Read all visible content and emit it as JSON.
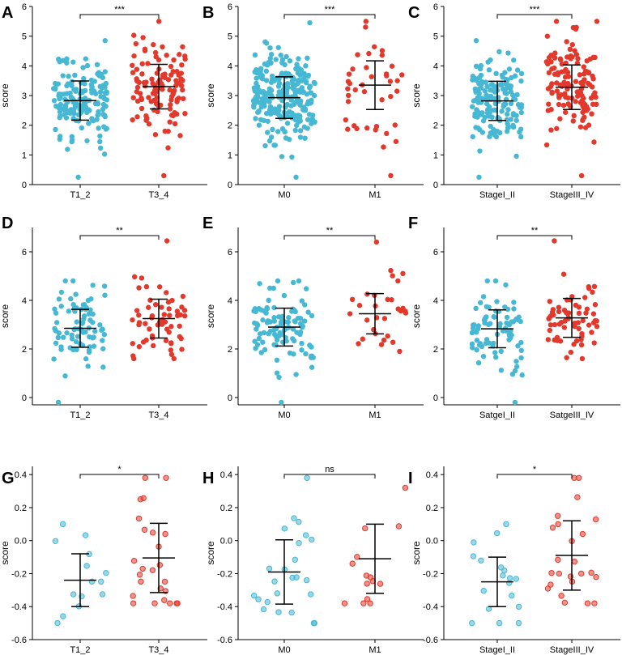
{
  "figure": {
    "colors": {
      "group1": "#47b8d4",
      "group2": "#e2392c",
      "axis": "#000000"
    }
  },
  "chart_data": [
    {
      "id": "A",
      "type": "scatter",
      "ylabel": "score",
      "ylim": [
        0,
        6
      ],
      "yticks": [
        0,
        1,
        2,
        3,
        4,
        5,
        6
      ],
      "yticklabels": [
        "0",
        "1",
        "2",
        "3",
        "4",
        "5",
        "6"
      ],
      "categories": [
        "T1_2",
        "T3_4"
      ],
      "significance": "***",
      "groups": [
        {
          "name": "T1_2",
          "n": 160,
          "mean": 2.83,
          "sd": 0.66,
          "min": 0.25,
          "max": 4.85,
          "style": "solid"
        },
        {
          "name": "T3_4",
          "n": 120,
          "mean": 3.3,
          "sd": 0.75,
          "min": 0.3,
          "max": 5.5,
          "style": "solid"
        }
      ]
    },
    {
      "id": "B",
      "type": "scatter",
      "ylabel": "score",
      "ylim": [
        0,
        6
      ],
      "yticks": [
        0,
        1,
        2,
        3,
        4,
        5,
        6
      ],
      "yticklabels": [
        "0",
        "1",
        "2",
        "3",
        "4",
        "5",
        "6"
      ],
      "categories": [
        "M0",
        "M1"
      ],
      "significance": "***",
      "groups": [
        {
          "name": "M0",
          "n": 260,
          "mean": 2.93,
          "sd": 0.7,
          "min": 0.25,
          "max": 5.45,
          "style": "solid"
        },
        {
          "name": "M1",
          "n": 40,
          "mean": 3.35,
          "sd": 0.82,
          "min": 0.3,
          "max": 5.5,
          "style": "solid"
        }
      ]
    },
    {
      "id": "C",
      "type": "scatter",
      "ylabel": "score",
      "ylim": [
        0,
        6
      ],
      "yticks": [
        0,
        1,
        2,
        3,
        4,
        5,
        6
      ],
      "yticklabels": [
        "0",
        "1",
        "2",
        "3",
        "4",
        "5",
        "6"
      ],
      "categories": [
        "StageI_II",
        "StageIII_IV"
      ],
      "significance": "***",
      "groups": [
        {
          "name": "StageI_II",
          "n": 160,
          "mean": 2.82,
          "sd": 0.66,
          "min": 0.25,
          "max": 4.85,
          "style": "solid"
        },
        {
          "name": "StageIII_IV",
          "n": 130,
          "mean": 3.28,
          "sd": 0.75,
          "min": 0.3,
          "max": 5.5,
          "style": "solid"
        }
      ]
    },
    {
      "id": "D",
      "type": "scatter",
      "ylabel": "score",
      "ylim": [
        -0.3,
        7
      ],
      "yticks": [
        0,
        2,
        4,
        6
      ],
      "yticklabels": [
        "0",
        "2",
        "4",
        "6"
      ],
      "categories": [
        "T1_2",
        "T3_4"
      ],
      "significance": "**",
      "groups": [
        {
          "name": "T1_2",
          "n": 80,
          "mean": 2.85,
          "sd": 0.78,
          "min": -0.2,
          "max": 4.8,
          "style": "solid"
        },
        {
          "name": "T3_4",
          "n": 60,
          "mean": 3.25,
          "sd": 0.8,
          "min": 1.6,
          "max": 6.45,
          "style": "solid"
        }
      ]
    },
    {
      "id": "E",
      "type": "scatter",
      "ylabel": "score",
      "ylim": [
        -0.3,
        7
      ],
      "yticks": [
        0,
        2,
        4,
        6
      ],
      "yticklabels": [
        "0",
        "2",
        "4",
        "6"
      ],
      "categories": [
        "M0",
        "M1"
      ],
      "significance": "**",
      "groups": [
        {
          "name": "M0",
          "n": 110,
          "mean": 2.9,
          "sd": 0.78,
          "min": -0.2,
          "max": 4.8,
          "style": "solid"
        },
        {
          "name": "M1",
          "n": 30,
          "mean": 3.45,
          "sd": 0.83,
          "min": 1.9,
          "max": 6.4,
          "style": "solid"
        }
      ]
    },
    {
      "id": "F",
      "type": "scatter",
      "ylabel": "score",
      "ylim": [
        -0.3,
        7
      ],
      "yticks": [
        0,
        2,
        4,
        6
      ],
      "yticklabels": [
        "0",
        "2",
        "4",
        "6"
      ],
      "categories": [
        "SatgeI_II",
        "SatgeIII_IV"
      ],
      "significance": "**",
      "groups": [
        {
          "name": "SatgeI_II",
          "n": 80,
          "mean": 2.83,
          "sd": 0.78,
          "min": -0.2,
          "max": 4.8,
          "style": "solid"
        },
        {
          "name": "SatgeIII_IV",
          "n": 65,
          "mean": 3.28,
          "sd": 0.8,
          "min": 1.6,
          "max": 6.45,
          "style": "solid"
        }
      ]
    },
    {
      "id": "G",
      "type": "scatter",
      "ylabel": "score",
      "ylim": [
        -0.6,
        0.45
      ],
      "yticks": [
        -0.6,
        -0.4,
        -0.2,
        0,
        0.2,
        0.4
      ],
      "yticklabels": [
        "-0.6",
        "-0.4",
        "-0.2",
        "0.0",
        "0.2",
        "0.4"
      ],
      "categories": [
        "T1_2",
        "T3_4"
      ],
      "significance": "*",
      "groups": [
        {
          "name": "T1_2",
          "n": 14,
          "mean": -0.24,
          "sd": 0.16,
          "min": -0.5,
          "max": 0.1,
          "style": "ring"
        },
        {
          "name": "T3_4",
          "n": 25,
          "mean": -0.105,
          "sd": 0.21,
          "min": -0.38,
          "max": 0.38,
          "style": "ring"
        }
      ]
    },
    {
      "id": "H",
      "type": "scatter",
      "ylabel": "score",
      "ylim": [
        -0.6,
        0.45
      ],
      "yticks": [
        -0.6,
        -0.4,
        -0.2,
        0,
        0.2,
        0.4
      ],
      "yticklabels": [
        "-0.6",
        "-0.4",
        "-0.2",
        "0.0",
        "0.2",
        "0.4"
      ],
      "categories": [
        "M0",
        "M1"
      ],
      "significance": "ns",
      "groups": [
        {
          "name": "M0",
          "n": 24,
          "mean": -0.19,
          "sd": 0.195,
          "min": -0.5,
          "max": 0.38,
          "style": "ring"
        },
        {
          "name": "M1",
          "n": 14,
          "mean": -0.11,
          "sd": 0.21,
          "min": -0.38,
          "max": 0.32,
          "style": "ring"
        }
      ]
    },
    {
      "id": "I",
      "type": "scatter",
      "ylabel": "score",
      "ylim": [
        -0.6,
        0.45
      ],
      "yticks": [
        -0.6,
        -0.4,
        -0.2,
        0,
        0.2,
        0.4
      ],
      "yticklabels": [
        "-0.6",
        "-0.4",
        "-0.2",
        "0.0",
        "0.2",
        "0.4"
      ],
      "categories": [
        "StageI_II",
        "StageIII_IV"
      ],
      "significance": "*",
      "groups": [
        {
          "name": "StageI_II",
          "n": 18,
          "mean": -0.25,
          "sd": 0.15,
          "min": -0.5,
          "max": 0.1,
          "style": "ring"
        },
        {
          "name": "StageIII_IV",
          "n": 24,
          "mean": -0.09,
          "sd": 0.21,
          "min": -0.38,
          "max": 0.38,
          "style": "ring"
        }
      ]
    }
  ]
}
